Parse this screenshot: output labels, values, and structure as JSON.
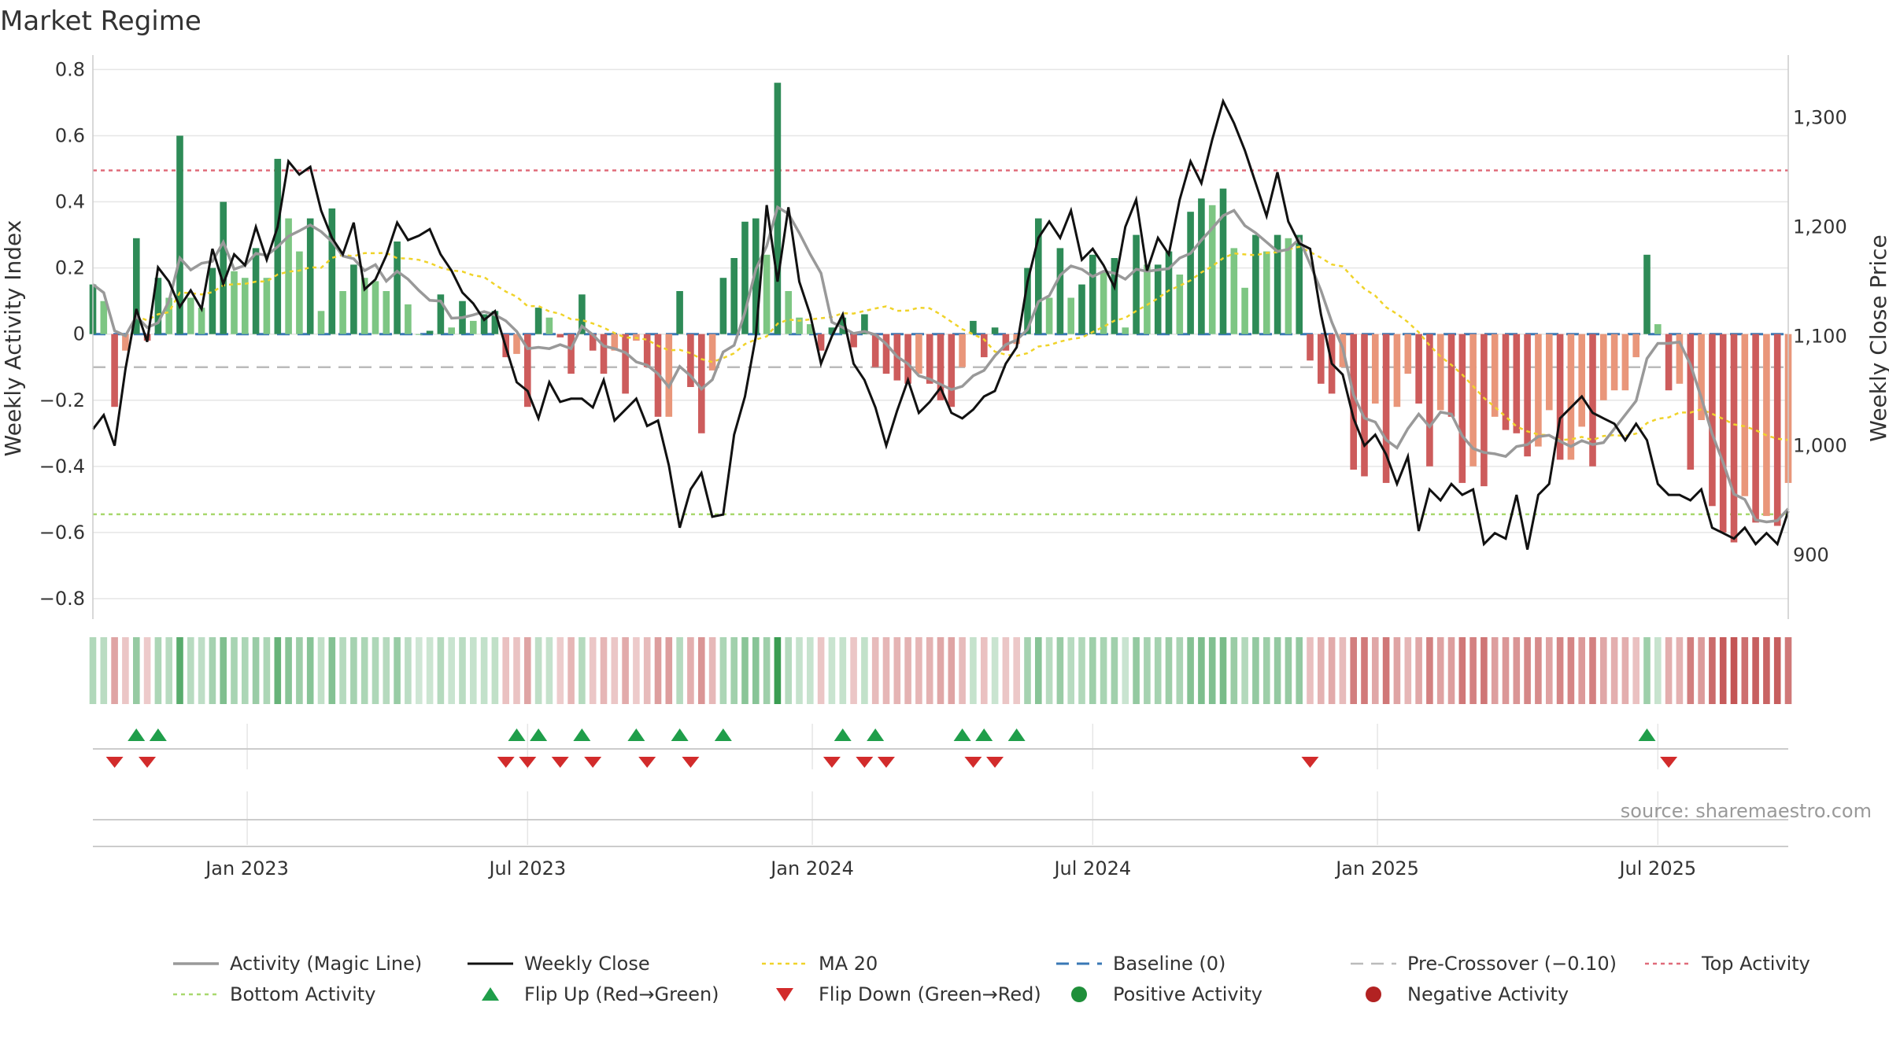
{
  "chart_data": {
    "type": "bar+line",
    "title": "Market Regime",
    "ylabel_left": "Weekly Activity Index",
    "ylabel_right": "Weekly Close Price",
    "ylim_left": [
      -0.85,
      0.82
    ],
    "ylim_right": [
      845,
      1350
    ],
    "yticks_left": [
      0.8,
      0.6,
      0.4,
      0.2,
      0,
      -0.2,
      -0.4,
      -0.6,
      -0.8
    ],
    "yticks_left_labels": [
      "0.8",
      "0.6",
      "0.4",
      "0.2",
      "0",
      "−0.2",
      "−0.4",
      "−0.6",
      "−0.8"
    ],
    "yticks_right": [
      1300,
      1200,
      1100,
      1000,
      900
    ],
    "yticks_right_labels": [
      "1,300",
      "1,200",
      "1,100",
      "1,000",
      "900"
    ],
    "x_start": "2022-09-26",
    "weeks": 157,
    "x_ticks": [
      {
        "label": "Jan 2023",
        "week": 14.2
      },
      {
        "label": "Jul 2023",
        "week": 40.0
      },
      {
        "label": "Jan 2024",
        "week": 66.2
      },
      {
        "label": "Jul 2024",
        "week": 92.0
      },
      {
        "label": "Jan 2025",
        "week": 118.2
      },
      {
        "label": "Jul 2025",
        "week": 144.0
      }
    ],
    "reference_lines": {
      "baseline": 0,
      "pre_crossover": -0.1,
      "top_activity": 0.495,
      "bottom_activity": -0.545
    },
    "activity_anchors": [
      [
        0,
        0.15
      ],
      [
        1,
        0.1
      ],
      [
        2,
        -0.22
      ],
      [
        3,
        -0.05
      ],
      [
        4,
        0.29
      ],
      [
        5,
        -0.02
      ],
      [
        6,
        0.17
      ],
      [
        7,
        0.11
      ],
      [
        8,
        0.6
      ],
      [
        9,
        0.11
      ],
      [
        10,
        0.08
      ],
      [
        11,
        0.2
      ],
      [
        12,
        0.4
      ],
      [
        13,
        0.19
      ],
      [
        14,
        0.17
      ],
      [
        15,
        0.26
      ],
      [
        16,
        0.17
      ],
      [
        17,
        0.53
      ],
      [
        18,
        0.35
      ],
      [
        19,
        0.25
      ],
      [
        20,
        0.35
      ],
      [
        21,
        0.07
      ],
      [
        22,
        0.38
      ],
      [
        23,
        0.13
      ],
      [
        24,
        0.21
      ],
      [
        25,
        0.17
      ],
      [
        26,
        0.16
      ],
      [
        27,
        0.13
      ],
      [
        28,
        0.28
      ],
      [
        29,
        0.09
      ],
      [
        30,
        0.0
      ],
      [
        31,
        0.01
      ],
      [
        32,
        0.12
      ],
      [
        33,
        0.02
      ],
      [
        34,
        0.1
      ],
      [
        35,
        0.04
      ],
      [
        36,
        0.06
      ],
      [
        37,
        0.07
      ],
      [
        38,
        -0.07
      ],
      [
        39,
        -0.06
      ],
      [
        40,
        -0.22
      ],
      [
        41,
        0.08
      ],
      [
        42,
        0.05
      ],
      [
        43,
        -0.01
      ],
      [
        44,
        -0.12
      ],
      [
        45,
        0.12
      ],
      [
        46,
        -0.05
      ],
      [
        47,
        -0.12
      ],
      [
        48,
        -0.05
      ],
      [
        49,
        -0.18
      ],
      [
        50,
        -0.02
      ],
      [
        51,
        -0.1
      ],
      [
        52,
        -0.25
      ],
      [
        53,
        -0.25
      ],
      [
        54,
        0.13
      ],
      [
        55,
        -0.16
      ],
      [
        56,
        -0.3
      ],
      [
        57,
        -0.11
      ],
      [
        58,
        0.17
      ],
      [
        59,
        0.23
      ],
      [
        60,
        0.34
      ],
      [
        61,
        0.35
      ],
      [
        62,
        0.24
      ],
      [
        63,
        0.76
      ],
      [
        64,
        0.13
      ],
      [
        65,
        0.05
      ],
      [
        66,
        0.03
      ],
      [
        67,
        -0.05
      ],
      [
        68,
        0.02
      ],
      [
        69,
        0.05
      ],
      [
        70,
        -0.04
      ],
      [
        71,
        0.06
      ],
      [
        72,
        -0.1
      ],
      [
        73,
        -0.12
      ],
      [
        74,
        -0.14
      ],
      [
        75,
        -0.15
      ],
      [
        76,
        -0.12
      ],
      [
        77,
        -0.15
      ],
      [
        78,
        -0.2
      ],
      [
        79,
        -0.22
      ],
      [
        80,
        -0.1
      ],
      [
        81,
        0.04
      ],
      [
        82,
        -0.07
      ],
      [
        83,
        0.02
      ],
      [
        84,
        -0.05
      ],
      [
        85,
        -0.03
      ],
      [
        86,
        0.2
      ],
      [
        87,
        0.35
      ],
      [
        88,
        0.11
      ],
      [
        89,
        0.26
      ],
      [
        90,
        0.11
      ],
      [
        91,
        0.15
      ],
      [
        92,
        0.24
      ],
      [
        93,
        0.19
      ],
      [
        94,
        0.23
      ],
      [
        95,
        0.02
      ],
      [
        96,
        0.3
      ],
      [
        97,
        0.21
      ],
      [
        98,
        0.21
      ],
      [
        99,
        0.25
      ],
      [
        100,
        0.18
      ],
      [
        101,
        0.37
      ],
      [
        102,
        0.41
      ],
      [
        103,
        0.39
      ],
      [
        104,
        0.44
      ],
      [
        105,
        0.26
      ],
      [
        106,
        0.14
      ],
      [
        107,
        0.3
      ],
      [
        108,
        0.25
      ],
      [
        109,
        0.3
      ],
      [
        110,
        0.29
      ],
      [
        111,
        0.3
      ],
      [
        112,
        -0.08
      ],
      [
        113,
        -0.15
      ],
      [
        114,
        -0.18
      ],
      [
        115,
        -0.1
      ],
      [
        116,
        -0.41
      ],
      [
        117,
        -0.43
      ],
      [
        118,
        -0.21
      ],
      [
        119,
        -0.45
      ],
      [
        120,
        -0.22
      ],
      [
        121,
        -0.12
      ],
      [
        122,
        -0.21
      ],
      [
        123,
        -0.4
      ],
      [
        124,
        -0.23
      ],
      [
        125,
        -0.25
      ],
      [
        126,
        -0.45
      ],
      [
        127,
        -0.4
      ],
      [
        128,
        -0.46
      ],
      [
        129,
        -0.25
      ],
      [
        130,
        -0.29
      ],
      [
        131,
        -0.3
      ],
      [
        132,
        -0.37
      ],
      [
        133,
        -0.34
      ],
      [
        134,
        -0.23
      ],
      [
        135,
        -0.38
      ],
      [
        136,
        -0.38
      ],
      [
        137,
        -0.28
      ],
      [
        138,
        -0.4
      ],
      [
        139,
        -0.2
      ],
      [
        140,
        -0.17
      ],
      [
        141,
        -0.17
      ],
      [
        142,
        -0.07
      ],
      [
        143,
        0.24
      ],
      [
        144,
        0.03
      ],
      [
        145,
        -0.17
      ],
      [
        146,
        -0.15
      ],
      [
        147,
        -0.41
      ],
      [
        148,
        -0.26
      ],
      [
        149,
        -0.52
      ],
      [
        150,
        -0.6
      ],
      [
        151,
        -0.63
      ],
      [
        152,
        -0.49
      ],
      [
        153,
        -0.57
      ],
      [
        154,
        -0.55
      ],
      [
        155,
        -0.58
      ],
      [
        156,
        -0.45
      ]
    ],
    "close_anchors": [
      [
        0,
        1015
      ],
      [
        1,
        1028
      ],
      [
        2,
        1000
      ],
      [
        3,
        1070
      ],
      [
        4,
        1125
      ],
      [
        5,
        1095
      ],
      [
        6,
        1163
      ],
      [
        7,
        1150
      ],
      [
        8,
        1127
      ],
      [
        9,
        1142
      ],
      [
        10,
        1125
      ],
      [
        11,
        1180
      ],
      [
        12,
        1148
      ],
      [
        13,
        1175
      ],
      [
        14,
        1165
      ],
      [
        15,
        1200
      ],
      [
        16,
        1170
      ],
      [
        17,
        1200
      ],
      [
        18,
        1260
      ],
      [
        19,
        1248
      ],
      [
        20,
        1255
      ],
      [
        21,
        1215
      ],
      [
        22,
        1190
      ],
      [
        23,
        1175
      ],
      [
        24,
        1204
      ],
      [
        25,
        1143
      ],
      [
        26,
        1152
      ],
      [
        27,
        1174
      ],
      [
        28,
        1204
      ],
      [
        29,
        1188
      ],
      [
        30,
        1192
      ],
      [
        31,
        1198
      ],
      [
        32,
        1175
      ],
      [
        33,
        1160
      ],
      [
        34,
        1140
      ],
      [
        35,
        1130
      ],
      [
        36,
        1115
      ],
      [
        37,
        1123
      ],
      [
        38,
        1090
      ],
      [
        39,
        1058
      ],
      [
        40,
        1050
      ],
      [
        41,
        1025
      ],
      [
        42,
        1058
      ],
      [
        43,
        1040
      ],
      [
        44,
        1043
      ],
      [
        45,
        1043
      ],
      [
        46,
        1035
      ],
      [
        47,
        1060
      ],
      [
        48,
        1023
      ],
      [
        49,
        1033
      ],
      [
        50,
        1043
      ],
      [
        51,
        1018
      ],
      [
        52,
        1023
      ],
      [
        53,
        982
      ],
      [
        54,
        925
      ],
      [
        55,
        960
      ],
      [
        56,
        975
      ],
      [
        57,
        935
      ],
      [
        58,
        937
      ],
      [
        59,
        1010
      ],
      [
        60,
        1045
      ],
      [
        61,
        1100
      ],
      [
        62,
        1220
      ],
      [
        63,
        1150
      ],
      [
        64,
        1218
      ],
      [
        65,
        1150
      ],
      [
        66,
        1120
      ],
      [
        67,
        1075
      ],
      [
        68,
        1100
      ],
      [
        69,
        1120
      ],
      [
        70,
        1075
      ],
      [
        71,
        1060
      ],
      [
        72,
        1035
      ],
      [
        73,
        1000
      ],
      [
        74,
        1032
      ],
      [
        75,
        1060
      ],
      [
        76,
        1030
      ],
      [
        77,
        1040
      ],
      [
        78,
        1053
      ],
      [
        79,
        1030
      ],
      [
        80,
        1025
      ],
      [
        81,
        1033
      ],
      [
        82,
        1045
      ],
      [
        83,
        1050
      ],
      [
        84,
        1075
      ],
      [
        85,
        1090
      ],
      [
        86,
        1150
      ],
      [
        87,
        1190
      ],
      [
        88,
        1205
      ],
      [
        89,
        1190
      ],
      [
        90,
        1215
      ],
      [
        91,
        1170
      ],
      [
        92,
        1180
      ],
      [
        93,
        1165
      ],
      [
        94,
        1145
      ],
      [
        95,
        1200
      ],
      [
        96,
        1225
      ],
      [
        97,
        1160
      ],
      [
        98,
        1190
      ],
      [
        99,
        1175
      ],
      [
        100,
        1225
      ],
      [
        101,
        1260
      ],
      [
        102,
        1240
      ],
      [
        103,
        1280
      ],
      [
        104,
        1315
      ],
      [
        105,
        1295
      ],
      [
        106,
        1270
      ],
      [
        107,
        1240
      ],
      [
        108,
        1210
      ],
      [
        109,
        1250
      ],
      [
        110,
        1205
      ],
      [
        111,
        1185
      ],
      [
        112,
        1180
      ],
      [
        113,
        1120
      ],
      [
        114,
        1075
      ],
      [
        115,
        1065
      ],
      [
        116,
        1025
      ],
      [
        117,
        1000
      ],
      [
        118,
        1010
      ],
      [
        119,
        992
      ],
      [
        120,
        965
      ],
      [
        121,
        990
      ],
      [
        122,
        922
      ],
      [
        123,
        960
      ],
      [
        124,
        950
      ],
      [
        125,
        965
      ],
      [
        126,
        955
      ],
      [
        127,
        960
      ],
      [
        128,
        910
      ],
      [
        129,
        920
      ],
      [
        130,
        915
      ],
      [
        131,
        955
      ],
      [
        132,
        905
      ],
      [
        133,
        955
      ],
      [
        134,
        965
      ],
      [
        135,
        1025
      ],
      [
        136,
        1035
      ],
      [
        137,
        1045
      ],
      [
        138,
        1030
      ],
      [
        139,
        1025
      ],
      [
        140,
        1020
      ],
      [
        141,
        1005
      ],
      [
        142,
        1020
      ],
      [
        143,
        1005
      ],
      [
        144,
        965
      ],
      [
        145,
        955
      ],
      [
        146,
        955
      ],
      [
        147,
        950
      ],
      [
        148,
        960
      ],
      [
        149,
        925
      ],
      [
        150,
        920
      ],
      [
        151,
        915
      ],
      [
        152,
        925
      ],
      [
        153,
        910
      ],
      [
        154,
        920
      ],
      [
        155,
        910
      ],
      [
        156,
        940
      ]
    ],
    "flip_up_weeks": [
      4,
      6,
      39,
      41,
      45,
      50,
      54,
      58,
      69,
      72,
      80,
      82,
      85,
      143
    ],
    "flip_down_weeks": [
      2,
      5,
      38,
      40,
      43,
      46,
      51,
      55,
      68,
      71,
      73,
      81,
      83,
      112,
      145
    ],
    "legend": [
      "Activity (Magic Line)",
      "Weekly Close",
      "MA 20",
      "Baseline (0)",
      "Pre-Crossover (−0.10)",
      "Top Activity",
      "Bottom Activity",
      "Flip Up (Red→Green)",
      "Flip Down (Green→Red)",
      "Positive Activity",
      "Negative Activity"
    ],
    "source": "source: sharemaestro.com"
  },
  "colors": {
    "pos_dark": "#2e8b57",
    "pos_light": "#7dc683",
    "neg_dark": "#cd5c5c",
    "neg_light": "#e9967a",
    "magic_line": "#999999",
    "close_line": "#111111",
    "ma20": "#f0d32a",
    "baseline": "#3a78b5",
    "pre_crossover": "#bbbbbb",
    "top": "#e06c7a",
    "bottom": "#a8d86e",
    "flip_up": "#1f9e4a",
    "flip_down": "#d22b2b",
    "positive_dot": "#1f8f3a",
    "negative_dot": "#b22222",
    "grid": "#e6e6e6",
    "axis": "#cccccc"
  }
}
